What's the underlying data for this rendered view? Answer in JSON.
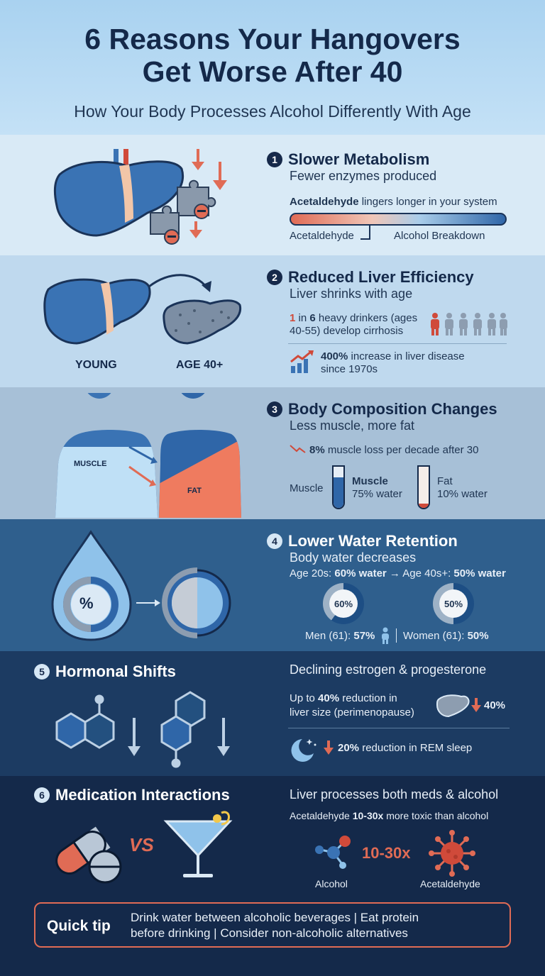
{
  "header": {
    "title_line1": "6 Reasons Your Hangovers",
    "title_line2": "Get Worse After 40",
    "subtitle": "How Your Body Processes Alcohol Differently With Age"
  },
  "reason1": {
    "number": "1",
    "title": "Slower Metabolism",
    "subtitle": "Fewer enzymes produced",
    "note_bold": "Acetaldehyde",
    "note_rest": " lingers longer in your system",
    "bar_left_label": "Acetaldehyde",
    "bar_right_label": "Alcohol Breakdown"
  },
  "reason2": {
    "number": "2",
    "title": "Reduced Liver Efficiency",
    "subtitle": "Liver shrinks with age",
    "young_label": "YOUNG",
    "old_label": "AGE 40+",
    "stat1_a": "1",
    "stat1_in": " in ",
    "stat1_b": "6",
    "stat1_rest": " heavy drinkers (ages",
    "stat1_line2": "40-55) develop cirrhosis",
    "stat2_bold": "400%",
    "stat2_rest": " increase in liver disease",
    "stat2_line2": "since 1970s"
  },
  "reason3": {
    "number": "3",
    "title": "Body Composition Changes",
    "subtitle": "Less muscle, more fat",
    "muscle_fig_label": "MUSCLE",
    "fat_fig_label": "FAT",
    "stat_bold": "8%",
    "stat_rest": " muscle loss per decade after 30",
    "tube_side_label": "Muscle",
    "muscle_name": "Muscle",
    "muscle_water": "75% water",
    "fat_name": "Fat",
    "fat_water": "10% water",
    "muscle_water_fraction": 0.75,
    "fat_water_fraction": 0.1
  },
  "reason4": {
    "number": "4",
    "title": "Lower Water Retention",
    "subtitle": "Body water decreases",
    "drop_symbol": "%",
    "line_a": "Age 20s: ",
    "line_b": "60% water",
    "line_c": " → Age 40s+: ",
    "line_d": "50% water",
    "gauge1_label": "60%",
    "gauge2_label": "50%",
    "men_text": "Men (61): ",
    "men_value": "57%",
    "women_text": "Women (61): ",
    "women_value": "50%"
  },
  "reason5": {
    "number": "5",
    "title": "Hormonal Shifts",
    "subtitle": "Declining estrogen & progesterone",
    "liver_line1_a": "Up to ",
    "liver_line1_b": "40%",
    "liver_line1_c": " reduction in",
    "liver_line2": "liver size (perimenopause)",
    "liver_value": "40%",
    "sleep_bold": "20%",
    "sleep_rest": " reduction in REM sleep"
  },
  "reason6": {
    "number": "6",
    "title": "Medication Interactions",
    "subtitle": "Liver processes both meds & alcohol",
    "toxic_a": "Acetaldehyde ",
    "toxic_b": "10-30x",
    "toxic_c": " more toxic than alcohol",
    "vs": "VS",
    "multiplier": "10-30x",
    "alcohol_label": "Alcohol",
    "acetaldehyde_label": "Acetaldehyde"
  },
  "tip": {
    "label": "Quick tip",
    "line1": "Drink water between alcoholic beverages | Eat protein",
    "line2": "before drinking | Consider non-alcoholic alternatives"
  },
  "colors": {
    "navy": "#14294a",
    "accent_red": "#e06b55",
    "liver_blue": "#3a73b4"
  }
}
